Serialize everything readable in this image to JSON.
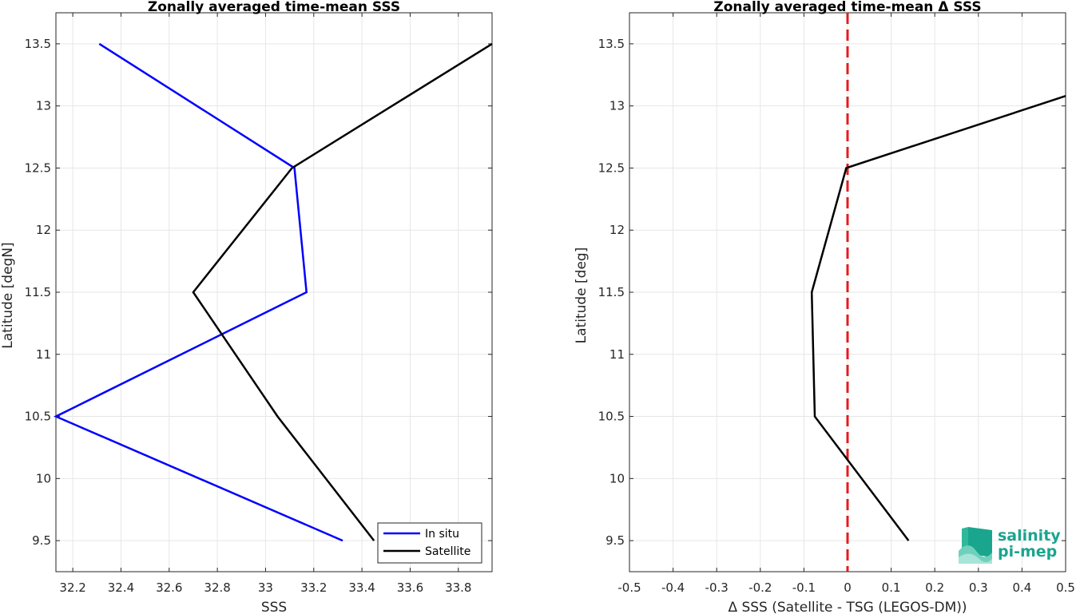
{
  "chart_data": [
    {
      "type": "line",
      "title": "Zonally averaged time-mean SSS",
      "xlabel": "SSS",
      "ylabel": "Latitude [degN]",
      "xlim": [
        32.13,
        33.94
      ],
      "ylim": [
        9.25,
        13.75
      ],
      "xticks": [
        "32.2",
        "32.4",
        "32.6",
        "32.8",
        "33",
        "33.2",
        "33.4",
        "33.6",
        "33.8"
      ],
      "yticks": [
        "9.5",
        "10",
        "10.5",
        "11",
        "11.5",
        "12",
        "12.5",
        "13",
        "13.5"
      ],
      "grid": true,
      "legend_position": "bottom-right",
      "series": [
        {
          "name": "In situ",
          "color": "#0000ff",
          "x": [
            33.32,
            32.13,
            33.17,
            33.12,
            32.31
          ],
          "y": [
            9.5,
            10.5,
            11.5,
            12.5,
            13.5
          ]
        },
        {
          "name": "Satellite",
          "color": "#000000",
          "x": [
            33.45,
            33.05,
            32.7,
            33.11,
            33.94
          ],
          "y": [
            9.5,
            10.5,
            11.5,
            12.5,
            13.5
          ]
        }
      ]
    },
    {
      "type": "line",
      "title": "Zonally averaged time-mean Δ SSS",
      "xlabel": "Δ SSS (Satellite - TSG (LEGOS-DM))",
      "ylabel": "Latitude [deg]",
      "xlim": [
        -0.5,
        0.5
      ],
      "ylim": [
        9.25,
        13.75
      ],
      "xticks": [
        "-0.5",
        "-0.4",
        "-0.3",
        "-0.2",
        "-0.1",
        "0",
        "0.1",
        "0.2",
        "0.3",
        "0.4",
        "0.5"
      ],
      "yticks": [
        "9.5",
        "10",
        "10.5",
        "11",
        "11.5",
        "12",
        "12.5",
        "13",
        "13.5"
      ],
      "grid": true,
      "reference_line": {
        "x": 0,
        "color": "#e41a1c",
        "style": "dashed"
      },
      "series": [
        {
          "color": "#000000",
          "x": [
            0.14,
            -0.075,
            -0.082,
            -0.003,
            0.5
          ],
          "y": [
            9.5,
            10.5,
            11.5,
            12.5,
            13.08
          ]
        }
      ]
    }
  ],
  "logo": {
    "line1": "salinity",
    "line2": "pi-mep",
    "color": "#1aa58e"
  }
}
